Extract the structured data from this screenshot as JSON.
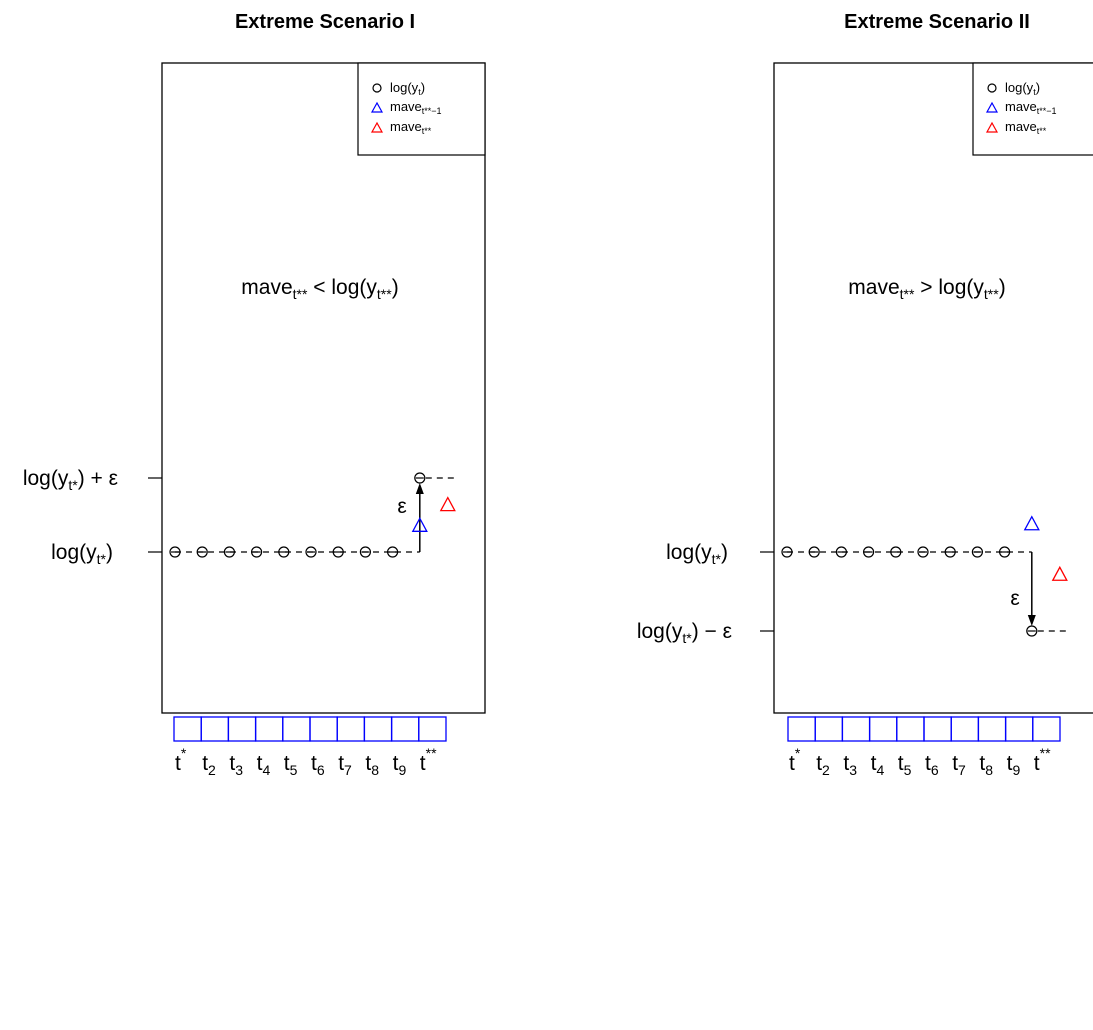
{
  "panels": [
    {
      "title": "Extreme Scenario I",
      "legend": [
        {
          "symbol": "circle",
          "color": "#000000",
          "text": "log(y",
          "sub": "t",
          "after": ")"
        },
        {
          "symbol": "triangle",
          "color": "#0000ff",
          "text": "mave",
          "sub": "t**−1",
          "after": ""
        },
        {
          "symbol": "triangle",
          "color": "#ff0000",
          "text": "mave",
          "sub": "t**",
          "after": ""
        }
      ],
      "annotation": {
        "main": "mave",
        "sub": "t**",
        "rest": " < log(y",
        "sub2": "t**",
        "end": ")"
      },
      "y_labels": [
        {
          "main": "log(y",
          "sub": "t*",
          "rest": ") + ε"
        },
        {
          "main": "log(y",
          "sub": "t*",
          "rest": ")"
        }
      ],
      "epsilon": "ε",
      "x_ticks": [
        {
          "main": "t",
          "sub": "",
          "sup": "*"
        },
        {
          "main": "t",
          "sub": "2",
          "sup": ""
        },
        {
          "main": "t",
          "sub": "3",
          "sup": ""
        },
        {
          "main": "t",
          "sub": "4",
          "sup": ""
        },
        {
          "main": "t",
          "sub": "5",
          "sup": ""
        },
        {
          "main": "t",
          "sub": "6",
          "sup": ""
        },
        {
          "main": "t",
          "sub": "7",
          "sup": ""
        },
        {
          "main": "t",
          "sub": "8",
          "sup": ""
        },
        {
          "main": "t",
          "sub": "9",
          "sup": ""
        },
        {
          "main": "t",
          "sub": "",
          "sup": "**"
        }
      ],
      "log_y_series": [
        0,
        0,
        0,
        0,
        0,
        0,
        0,
        0,
        0,
        1
      ],
      "mave_prev": 0.32,
      "mave_curr": 0.6,
      "colors": {
        "log_y": "#000000",
        "mave_prev": "#0000ff",
        "mave_curr": "#ff0000",
        "box": "#0000ff"
      }
    },
    {
      "title": "Extreme Scenario II",
      "legend": [
        {
          "symbol": "circle",
          "color": "#000000",
          "text": "log(y",
          "sub": "t",
          "after": ")"
        },
        {
          "symbol": "triangle",
          "color": "#0000ff",
          "text": "mave",
          "sub": "t**−1",
          "after": ""
        },
        {
          "symbol": "triangle",
          "color": "#ff0000",
          "text": "mave",
          "sub": "t**",
          "after": ""
        }
      ],
      "annotation": {
        "main": "mave",
        "sub": "t**",
        "rest": " > log(y",
        "sub2": "t**",
        "end": ")"
      },
      "y_labels": [
        {
          "main": "log(y",
          "sub": "t*",
          "rest": ")"
        },
        {
          "main": "log(y",
          "sub": "t*",
          "rest": ") − ε"
        }
      ],
      "epsilon": "ε",
      "x_ticks": [
        {
          "main": "t",
          "sub": "",
          "sup": "*"
        },
        {
          "main": "t",
          "sub": "2",
          "sup": ""
        },
        {
          "main": "t",
          "sub": "3",
          "sup": ""
        },
        {
          "main": "t",
          "sub": "4",
          "sup": ""
        },
        {
          "main": "t",
          "sub": "5",
          "sup": ""
        },
        {
          "main": "t",
          "sub": "6",
          "sup": ""
        },
        {
          "main": "t",
          "sub": "7",
          "sup": ""
        },
        {
          "main": "t",
          "sub": "8",
          "sup": ""
        },
        {
          "main": "t",
          "sub": "9",
          "sup": ""
        },
        {
          "main": "t",
          "sub": "",
          "sup": "**"
        }
      ],
      "log_y_series": [
        0,
        0,
        0,
        0,
        0,
        0,
        0,
        0,
        0,
        -1
      ],
      "mave_prev": 0.32,
      "mave_curr": -0.32,
      "colors": {
        "log_y": "#000000",
        "mave_prev": "#0000ff",
        "mave_curr": "#ff0000",
        "box": "#0000ff"
      }
    }
  ]
}
